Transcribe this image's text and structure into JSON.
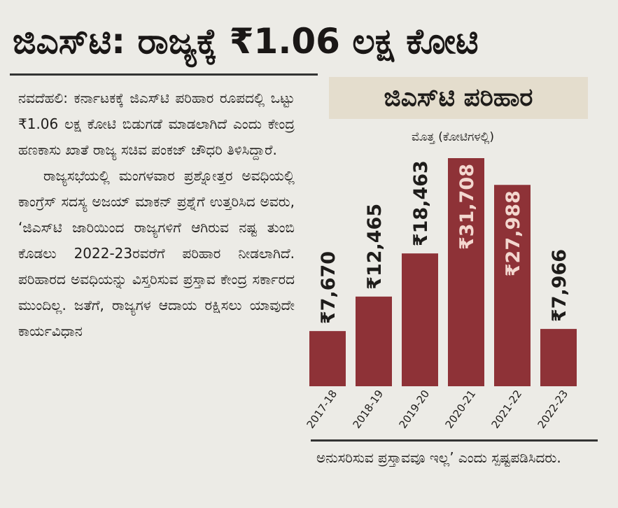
{
  "headline": "ಜಿಎಸ್‌ಟಿ: ರಾಜ್ಯಕ್ಕೆ ₹1.06 ಲಕ್ಷ ಕೋಟಿ",
  "article": {
    "paragraphs": [
      "ನವದೆಹಲಿ: ಕರ್ನಾಟಕಕ್ಕೆ ಜಿಎಸ್‌ಟಿ ಪರಿಹಾರ ರೂಪದಲ್ಲಿ ಒಟ್ಟು ₹1.06 ಲಕ್ಷ ಕೋಟಿ ಬಿಡುಗಡೆ ಮಾಡಲಾಗಿದೆ ಎಂದು ಕೇಂದ್ರ ಹಣಕಾಸು ಖಾತೆ ರಾಜ್ಯ ಸಚಿವ ಪಂಕಜ್ ಚೌಧರಿ ತಿಳಿಸಿದ್ದಾರೆ.",
      "ರಾಜ್ಯಸಭೆಯಲ್ಲಿ ಮಂಗಳವಾರ ಪ್ರಶ್ನೋತ್ತರ ಅವಧಿಯಲ್ಲಿ ಕಾಂಗ್ರೆಸ್ ಸದಸ್ಯ ಅಜಯ್ ಮಾಕನ್ ಪ್ರಶ್ನೆಗೆ ಉತ್ತರಿಸಿದ ಅವರು, ‘ಜಿಎಸ್‌ಟಿ ಜಾರಿಯಿಂದ ರಾಜ್ಯಗಳಿಗೆ ಆಗಿರುವ ನಷ್ಟ ತುಂಬಿ ಕೊಡಲು 2022-23ರವರೆಗೆ ಪರಿಹಾರ ನೀಡಲಾಗಿದೆ. ಪರಿಹಾರದ ಅವಧಿಯನ್ನು ವಿಸ್ತರಿಸುವ ಪ್ರಸ್ತಾವ ಕೇಂದ್ರ ಸರ್ಕಾರದ ಮುಂದಿಲ್ಲ. ಜತೆಗೆ, ರಾಜ್ಯಗಳ ಆದಾಯ ರಕ್ಷಿಸಲು ಯಾವುದೇ ಕಾರ್ಯವಿಧಾನ"
    ],
    "tail": "ಅನುಸರಿಸುವ ಪ್ರಸ್ತಾವವೂ ಇಲ್ಲ’ ಎಂದು ಸ್ಪಷ್ಟಪಡಿಸಿದರು."
  },
  "chart_data": {
    "type": "bar",
    "title": "ಜಿಎಸ್‌ಟಿ ಪರಿಹಾರ",
    "subtitle": "ಮೊತ್ತ (ಕೋಟಿಗಳಲ್ಲಿ)",
    "categories": [
      "2017-18",
      "2018-19",
      "2019-20",
      "2020-21",
      "2021-22",
      "2022-23"
    ],
    "values": [
      7670,
      12465,
      18463,
      31708,
      27988,
      7966
    ],
    "labels": [
      "₹7,670",
      "₹12,465",
      "₹18,463",
      "₹31,708",
      "₹27,988",
      "₹7,966"
    ],
    "ylim": [
      0,
      31708
    ],
    "bar_color": "#8e3237",
    "label_color_outside": "#1e1c1a",
    "label_color_inside": "#f3d7cf",
    "inside_label_categories": [
      "2020-21",
      "2021-22"
    ],
    "grid": false
  }
}
